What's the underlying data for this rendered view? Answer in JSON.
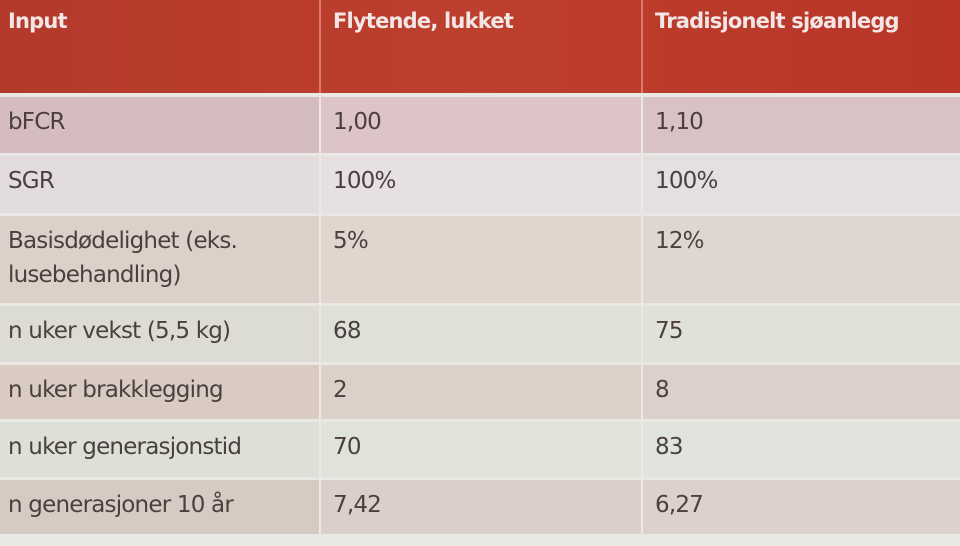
{
  "table": {
    "headers": [
      "Input",
      "Flytende, lukket",
      "Tradisjonelt sjøanlegg"
    ],
    "rows": [
      [
        "bFCR",
        "1,00",
        "1,10"
      ],
      [
        "SGR",
        "100%",
        "100%"
      ],
      [
        "Basisdødelighet (eks. lusebehandling)",
        "5%",
        "12%"
      ],
      [
        "n uker vekst (5,5 kg)",
        "68",
        "75"
      ],
      [
        "n uker brakklegging",
        "2",
        "8"
      ],
      [
        "n uker generasjonstid",
        "70",
        "83"
      ],
      [
        "n generasjoner 10 år",
        "7,42",
        "6,27"
      ]
    ]
  },
  "colors": {
    "header": "#b83a2c"
  }
}
